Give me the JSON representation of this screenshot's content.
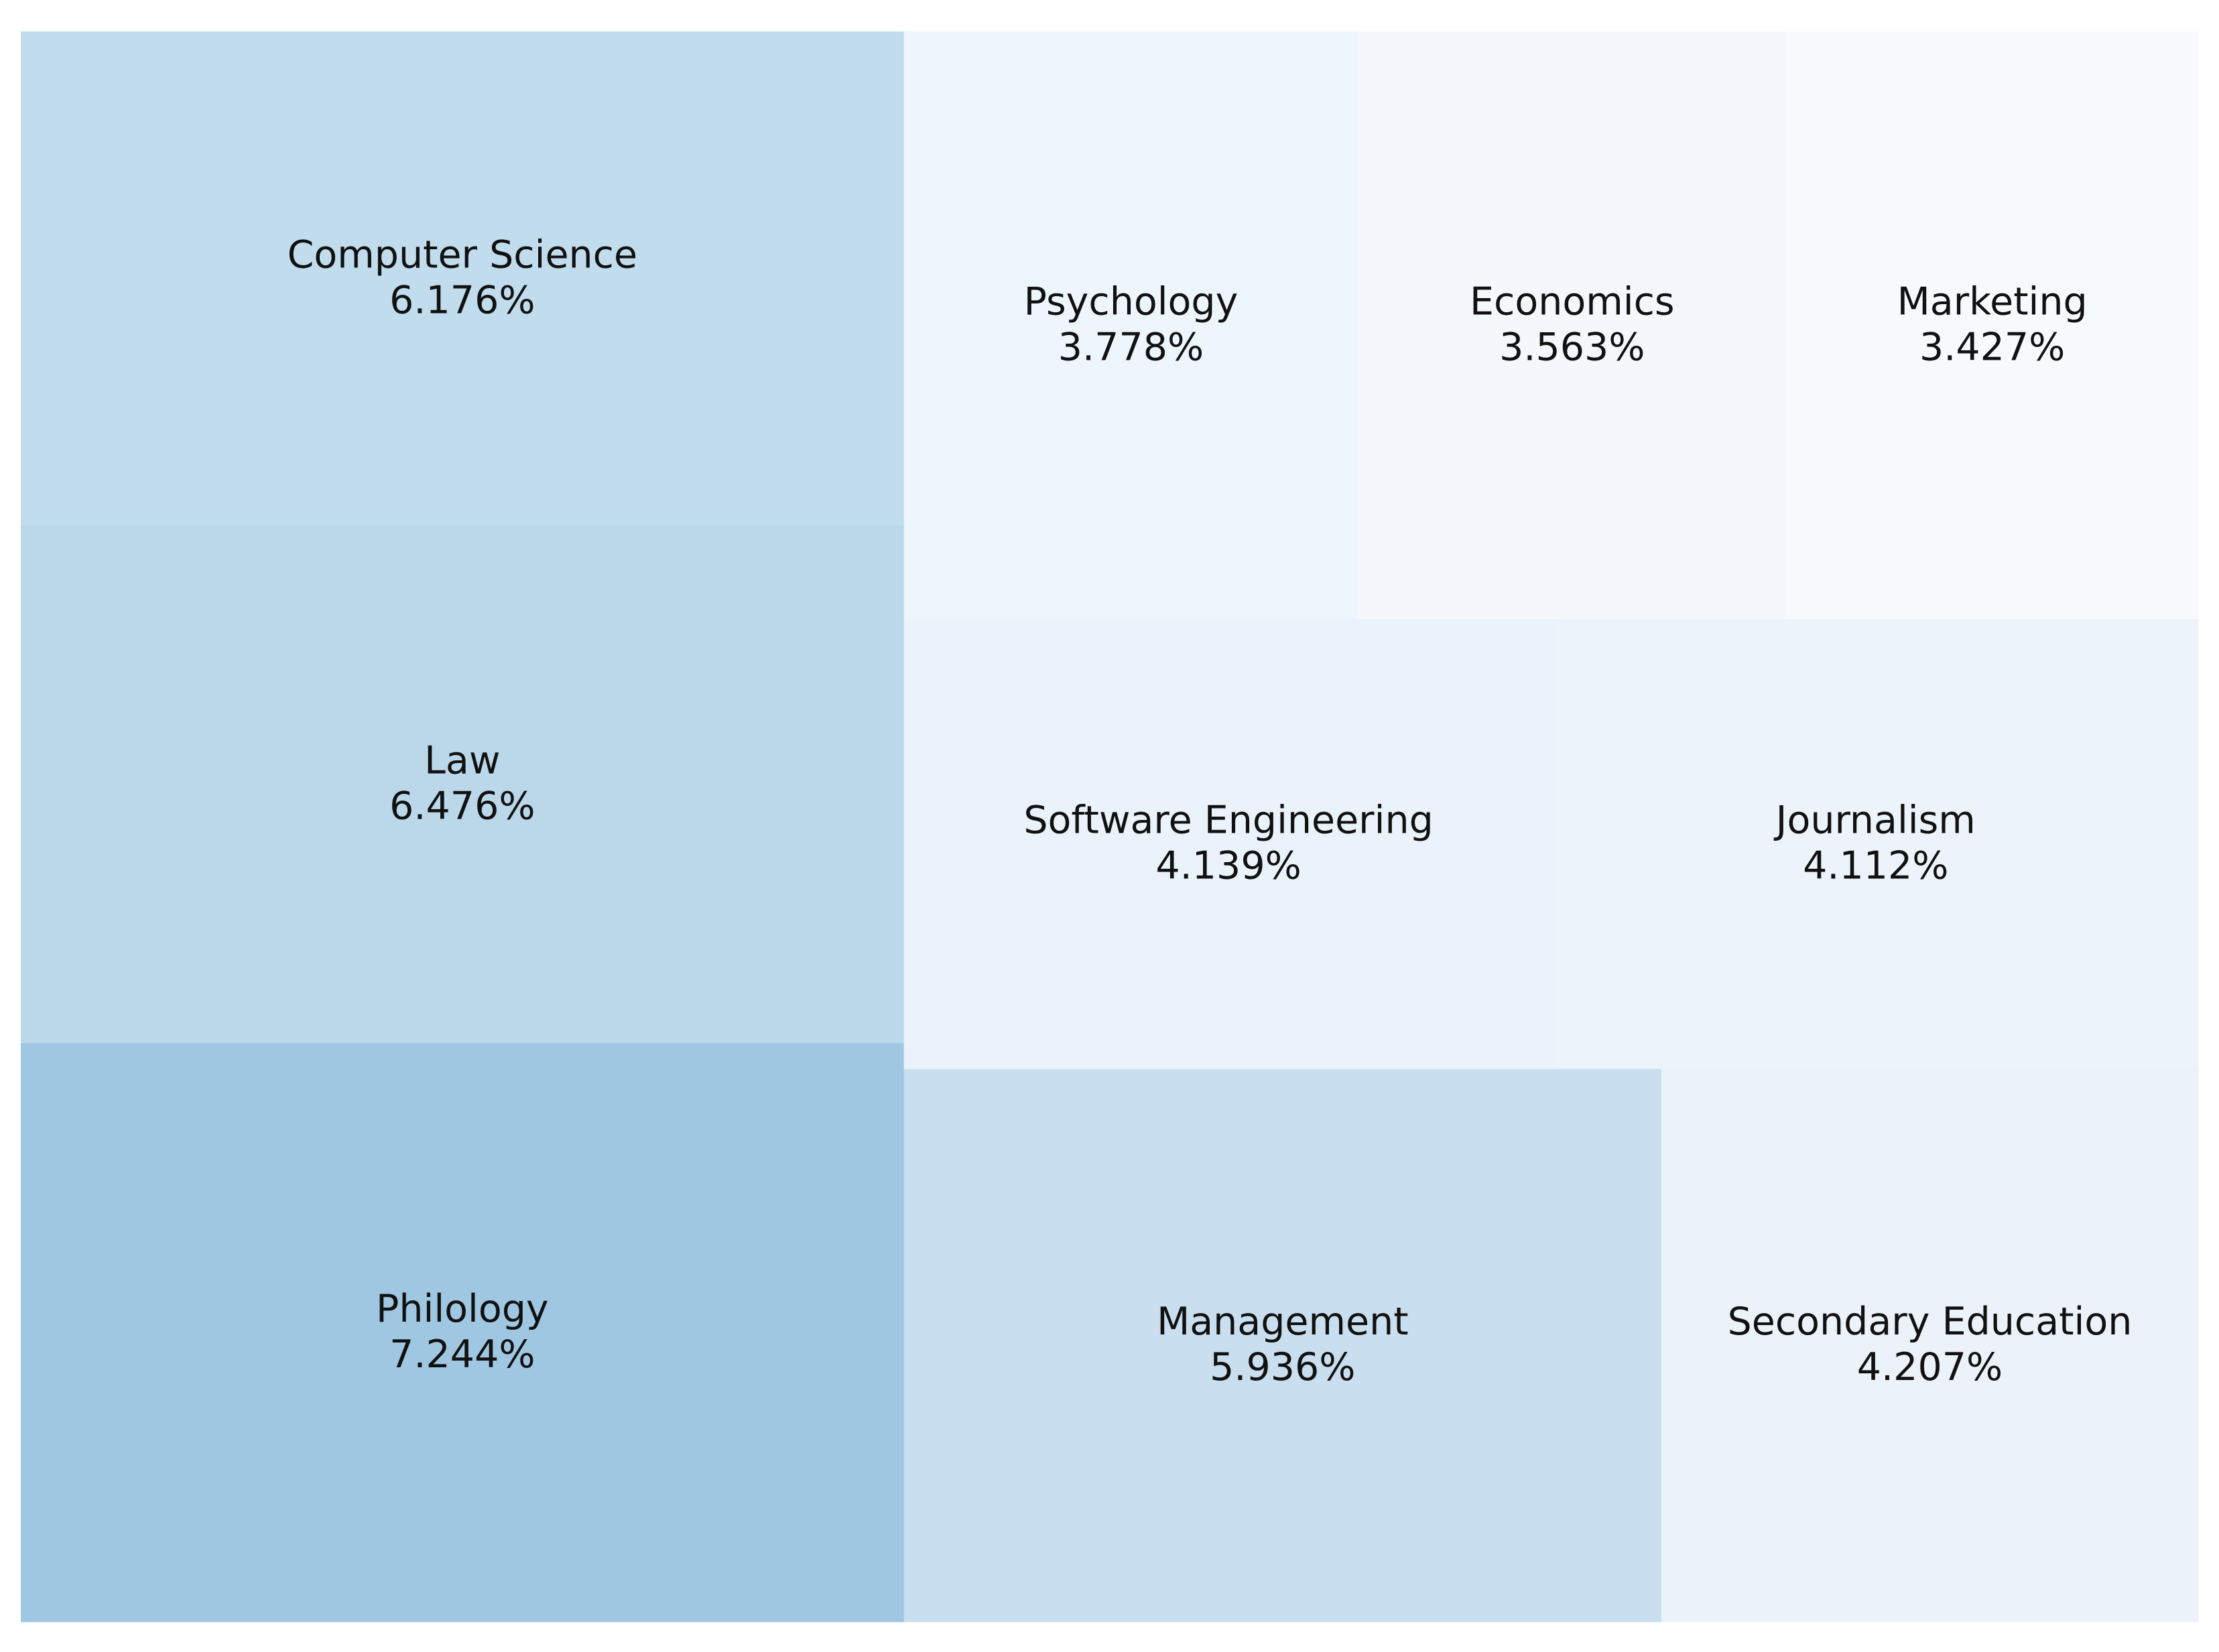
{
  "chart_data": {
    "type": "treemap",
    "title": "",
    "unit": "%",
    "items": [
      {
        "label": "Philology",
        "value": 7.244,
        "display": "7.244%",
        "color": "#a0c7e2"
      },
      {
        "label": "Law",
        "value": 6.476,
        "display": "6.476%",
        "color": "#bad8ea"
      },
      {
        "label": "Computer Science",
        "value": 6.176,
        "display": "6.176%",
        "color": "#c1dced"
      },
      {
        "label": "Management",
        "value": 5.936,
        "display": "5.936%",
        "color": "#c9deee"
      },
      {
        "label": "Secondary Education",
        "value": 4.207,
        "display": "4.207%",
        "color": "#ebf2f9"
      },
      {
        "label": "Software Engineering",
        "value": 4.139,
        "display": "4.139%",
        "color": "#eaf3fb"
      },
      {
        "label": "Journalism",
        "value": 4.112,
        "display": "4.112%",
        "color": "#ecf3fa"
      },
      {
        "label": "Psychology",
        "value": 3.778,
        "display": "3.778%",
        "color": "#eef6fd"
      },
      {
        "label": "Economics",
        "value": 3.563,
        "display": "3.563%",
        "color": "#f4f8fc"
      },
      {
        "label": "Marketing",
        "value": 3.427,
        "display": "3.427%",
        "color": "#f7fafd"
      }
    ]
  }
}
